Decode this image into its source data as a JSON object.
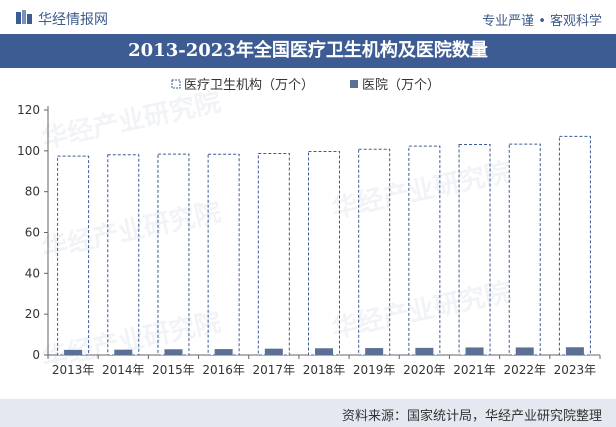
{
  "header": {
    "brand": "华经情报网",
    "slogan": "专业严谨 • 客观科学",
    "colors": {
      "brand": "#3c5c93"
    }
  },
  "footer": {
    "source": "资料来源：国家统计局，华经产业研究院整理"
  },
  "watermark": "华经产业研究院",
  "chart_data": {
    "type": "bar",
    "title": "2013-2023年全国医疗卫生机构及医院数量",
    "xlabel": "",
    "ylabel": "",
    "ylim": [
      0,
      120
    ],
    "yticks": [
      0,
      20,
      40,
      60,
      80,
      100,
      120
    ],
    "grid": false,
    "legend_position": "top",
    "categories": [
      "2013年",
      "2014年",
      "2015年",
      "2016年",
      "2017年",
      "2018年",
      "2019年",
      "2020年",
      "2021年",
      "2022年",
      "2023年"
    ],
    "series": [
      {
        "name": "医疗卫生机构（万个）",
        "values": [
          97.4,
          98.1,
          98.4,
          98.3,
          98.7,
          99.7,
          100.8,
          102.3,
          103.1,
          103.3,
          107.1
        ],
        "color": "#ffffff",
        "stroke": "#3c5c93",
        "style": "dashed-outline"
      },
      {
        "name": "医院（万个）",
        "values": [
          2.5,
          2.6,
          2.8,
          2.9,
          3.1,
          3.3,
          3.4,
          3.5,
          3.7,
          3.7,
          3.8
        ],
        "color": "#5b7094"
      }
    ]
  }
}
